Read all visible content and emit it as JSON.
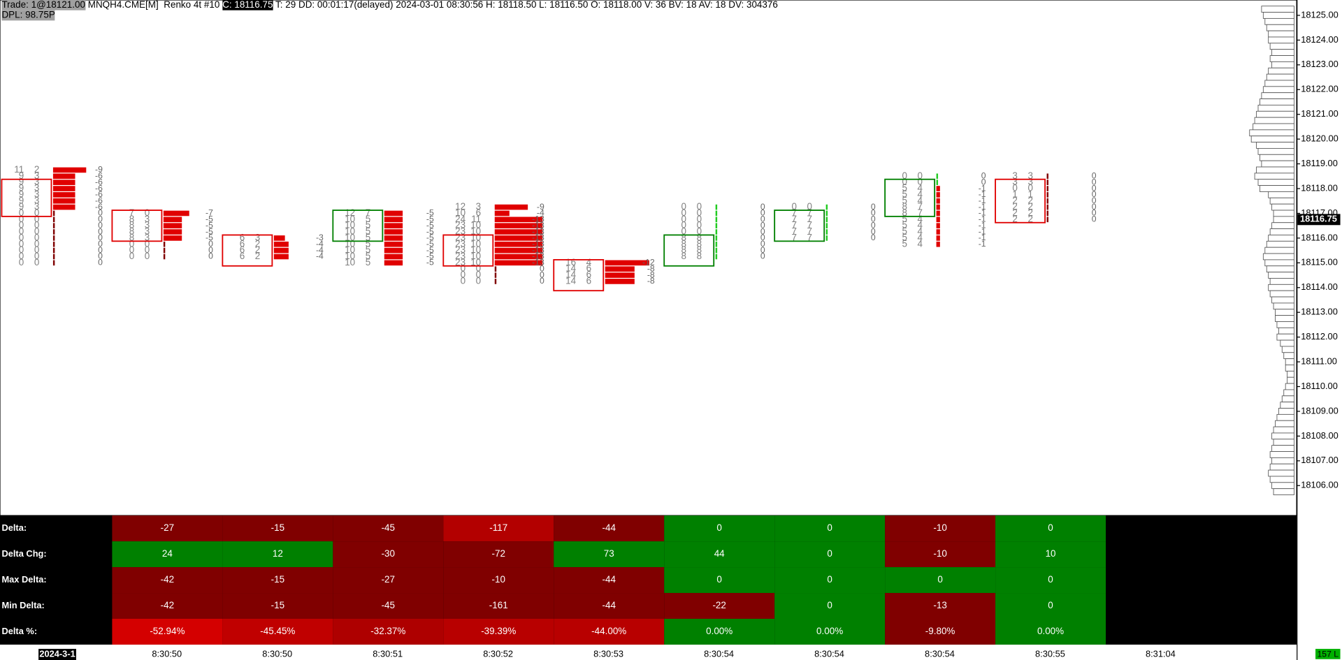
{
  "header": {
    "trade": "Trade: 1@18121.00",
    "symbol": "MNQH4.CME[M]  Renko 4t #10",
    "close": "C: 18116.75",
    "stats": "T: 29 DD: 00:01:17(delayed) 2024-03-01 08:30:56 H: 18118.50 L: 18116.50 O: 18118.00 V: 36 BV: 18 AV: 18 DV: 304376",
    "dpl": "DPL: 98.75P"
  },
  "price_axis": {
    "ylim": [
      18104.79,
      18125.62
    ],
    "ticks": [
      {
        "value": 18125,
        "label": "18125.00"
      },
      {
        "value": 18124,
        "label": "18124.00"
      },
      {
        "value": 18123,
        "label": "18123.00"
      },
      {
        "value": 18122,
        "label": "18122.00"
      },
      {
        "value": 18121,
        "label": "18121.00"
      },
      {
        "value": 18120,
        "label": "18120.00"
      },
      {
        "value": 18119,
        "label": "18119.00"
      },
      {
        "value": 18118,
        "label": "18118.00"
      },
      {
        "value": 18117,
        "label": "18117.00"
      },
      {
        "value": 18116,
        "label": "18116.00"
      },
      {
        "value": 18115,
        "label": "18115.00"
      },
      {
        "value": 18114,
        "label": "18114.00"
      },
      {
        "value": 18113,
        "label": "18113.00"
      },
      {
        "value": 18112,
        "label": "18112.00"
      },
      {
        "value": 18111,
        "label": "18111.00"
      },
      {
        "value": 18110,
        "label": "18110.00"
      },
      {
        "value": 18109,
        "label": "18109.00"
      },
      {
        "value": 18108,
        "label": "18108.00"
      },
      {
        "value": 18107,
        "label": "18107.00"
      },
      {
        "value": 18106,
        "label": "18106.00"
      }
    ],
    "current": {
      "value": 18116.75,
      "label": "18116.75"
    }
  },
  "volume_profile": {
    "top_price": 18125.25,
    "step": 0.25,
    "volumes": [
      38,
      36,
      34,
      32,
      30,
      30,
      28,
      26,
      28,
      26,
      30,
      32,
      34,
      36,
      38,
      40,
      42,
      44,
      46,
      48,
      52,
      50,
      44,
      42,
      40,
      38,
      44,
      46,
      42,
      40,
      30,
      28,
      26,
      24,
      24,
      26,
      28,
      30,
      32,
      34,
      36,
      34,
      32,
      30,
      28,
      30,
      28,
      26,
      24,
      22,
      22,
      20,
      18,
      20,
      16,
      14,
      12,
      10,
      10,
      8,
      8,
      10,
      12,
      14,
      16,
      18,
      20,
      22,
      24,
      26,
      24,
      26,
      28,
      26,
      28,
      30,
      28,
      26,
      24
    ]
  },
  "footprints": [
    {
      "top_price": 18118.75,
      "box": [
        18118.25,
        18117.0
      ],
      "color": "#e00000",
      "rows": [
        [
          11,
          2,
          -9
        ],
        [
          9,
          3,
          -6
        ],
        [
          9,
          3,
          -6
        ],
        [
          9,
          3,
          -6
        ],
        [
          9,
          3,
          -6
        ],
        [
          9,
          3,
          -6
        ],
        [
          9,
          3,
          -6
        ],
        [
          0,
          0,
          0
        ],
        [
          0,
          0,
          0
        ],
        [
          0,
          0,
          0
        ],
        [
          0,
          0,
          0
        ],
        [
          0,
          0,
          0
        ],
        [
          0,
          0,
          0
        ],
        [
          0,
          0,
          0
        ],
        [
          0,
          0,
          0
        ],
        [
          0,
          0,
          0
        ]
      ]
    },
    {
      "top_price": 18117.0,
      "box": [
        18117.0,
        18116.0
      ],
      "color": "#e00000",
      "rows": [
        [
          7,
          0,
          -7
        ],
        [
          8,
          3,
          -5
        ],
        [
          8,
          3,
          -5
        ],
        [
          8,
          3,
          -5
        ],
        [
          8,
          3,
          -5
        ],
        [
          0,
          0,
          0
        ],
        [
          0,
          0,
          0
        ],
        [
          0,
          0,
          0
        ]
      ]
    },
    {
      "top_price": 18116.0,
      "box": [
        18116.0,
        18115.0
      ],
      "color": "#e00000",
      "rows": [
        [
          6,
          3,
          -3
        ],
        [
          6,
          2,
          -4
        ],
        [
          6,
          2,
          -4
        ],
        [
          6,
          2,
          -4
        ]
      ]
    },
    {
      "top_price": 18117.0,
      "box": [
        18117.0,
        18116.0
      ],
      "color": "#008000",
      "rows": [
        [
          12,
          7,
          -5
        ],
        [
          10,
          5,
          -5
        ],
        [
          10,
          5,
          -5
        ],
        [
          10,
          5,
          -5
        ],
        [
          10,
          5,
          -5
        ],
        [
          10,
          5,
          -5
        ],
        [
          10,
          5,
          -5
        ],
        [
          10,
          5,
          -5
        ],
        [
          10,
          5,
          -5
        ]
      ]
    },
    {
      "top_price": 18117.25,
      "box": [
        18116.0,
        18115.0
      ],
      "color": "#e00000",
      "rows": [
        [
          12,
          3,
          -9
        ],
        [
          10,
          6,
          -4
        ],
        [
          24,
          11,
          -13
        ],
        [
          23,
          10,
          -13
        ],
        [
          23,
          10,
          -13
        ],
        [
          23,
          10,
          -13
        ],
        [
          23,
          10,
          -13
        ],
        [
          23,
          10,
          -13
        ],
        [
          23,
          10,
          -13
        ],
        [
          23,
          10,
          -13
        ],
        [
          0,
          0,
          0
        ],
        [
          0,
          0,
          0
        ],
        [
          0,
          0,
          0
        ]
      ]
    },
    {
      "top_price": 18115.0,
      "box": [
        18115.0,
        18114.0
      ],
      "color": "#e00000",
      "rows": [
        [
          16,
          4,
          -12
        ],
        [
          14,
          6,
          -8
        ],
        [
          14,
          6,
          -8
        ],
        [
          14,
          6,
          -8
        ]
      ]
    },
    {
      "top_price": 18117.25,
      "box": [
        18116.0,
        18115.0
      ],
      "color": "#008000",
      "rows": [
        [
          0,
          0,
          0
        ],
        [
          0,
          0,
          0
        ],
        [
          0,
          0,
          0
        ],
        [
          0,
          0,
          0
        ],
        [
          0,
          0,
          0
        ],
        [
          8,
          8,
          0
        ],
        [
          8,
          8,
          0
        ],
        [
          8,
          8,
          0
        ],
        [
          8,
          8,
          0
        ]
      ]
    },
    {
      "top_price": 18117.25,
      "box": [
        18117.0,
        18116.0
      ],
      "color": "#008000",
      "rows": [
        [
          0,
          0,
          0
        ],
        [
          7,
          7,
          0
        ],
        [
          7,
          7,
          0
        ],
        [
          7,
          7,
          0
        ],
        [
          7,
          7,
          0
        ],
        [
          7,
          7,
          0
        ]
      ]
    },
    {
      "top_price": 18118.5,
      "box": [
        18118.25,
        18117.0
      ],
      "color": "#008000",
      "rows": [
        [
          0,
          0,
          0
        ],
        [
          0,
          0,
          0
        ],
        [
          5,
          4,
          -1
        ],
        [
          5,
          4,
          -1
        ],
        [
          5,
          4,
          -1
        ],
        [
          8,
          7,
          -1
        ],
        [
          8,
          7,
          -1
        ],
        [
          5,
          4,
          -1
        ],
        [
          5,
          4,
          -1
        ],
        [
          5,
          4,
          -1
        ],
        [
          5,
          4,
          -1
        ],
        [
          5,
          4,
          -1
        ]
      ]
    },
    {
      "top_price": 18118.5,
      "box": [
        18118.25,
        18116.75
      ],
      "color": "#e00000",
      "rows": [
        [
          3,
          3,
          0
        ],
        [
          3,
          3,
          0
        ],
        [
          0,
          0,
          0
        ],
        [
          1,
          1,
          0
        ],
        [
          2,
          2,
          0
        ],
        [
          2,
          2,
          0
        ],
        [
          2,
          2,
          0
        ],
        [
          2,
          2,
          0
        ]
      ]
    }
  ],
  "table": {
    "rows": [
      {
        "label": "Delta:",
        "cells": [
          {
            "text": "-27",
            "color": "#800000"
          },
          {
            "text": "-15",
            "color": "#800000"
          },
          {
            "text": "-45",
            "color": "#800000"
          },
          {
            "text": "-117",
            "color": "#b30000"
          },
          {
            "text": "-44",
            "color": "#800000"
          },
          {
            "text": "0",
            "color": "#008000"
          },
          {
            "text": "0",
            "color": "#008000"
          },
          {
            "text": "-10",
            "color": "#800000"
          },
          {
            "text": "0",
            "color": "#008000"
          }
        ]
      },
      {
        "label": "Delta Chg:",
        "cells": [
          {
            "text": "24",
            "color": "#008000"
          },
          {
            "text": "12",
            "color": "#008000"
          },
          {
            "text": "-30",
            "color": "#800000"
          },
          {
            "text": "-72",
            "color": "#800000"
          },
          {
            "text": "73",
            "color": "#008000"
          },
          {
            "text": "44",
            "color": "#008000"
          },
          {
            "text": "0",
            "color": "#008000"
          },
          {
            "text": "-10",
            "color": "#800000"
          },
          {
            "text": "10",
            "color": "#008000"
          }
        ]
      },
      {
        "label": "Max Delta:",
        "cells": [
          {
            "text": "-42",
            "color": "#800000"
          },
          {
            "text": "-15",
            "color": "#800000"
          },
          {
            "text": "-27",
            "color": "#800000"
          },
          {
            "text": "-10",
            "color": "#800000"
          },
          {
            "text": "-44",
            "color": "#800000"
          },
          {
            "text": "0",
            "color": "#008000"
          },
          {
            "text": "0",
            "color": "#008000"
          },
          {
            "text": "0",
            "color": "#008000"
          },
          {
            "text": "0",
            "color": "#008000"
          }
        ]
      },
      {
        "label": "Min Delta:",
        "cells": [
          {
            "text": "-42",
            "color": "#800000"
          },
          {
            "text": "-15",
            "color": "#800000"
          },
          {
            "text": "-45",
            "color": "#800000"
          },
          {
            "text": "-161",
            "color": "#800000"
          },
          {
            "text": "-44",
            "color": "#800000"
          },
          {
            "text": "-22",
            "color": "#800000"
          },
          {
            "text": "0",
            "color": "#008000"
          },
          {
            "text": "-13",
            "color": "#800000"
          },
          {
            "text": "0",
            "color": "#008000"
          }
        ]
      },
      {
        "label": "Delta %:",
        "cells": [
          {
            "text": "-52.94%",
            "color": "#d40000"
          },
          {
            "text": "-45.45%",
            "color": "#c00000"
          },
          {
            "text": "-32.37%",
            "color": "#ae0000"
          },
          {
            "text": "-39.39%",
            "color": "#b80000"
          },
          {
            "text": "-44.00%",
            "color": "#b80000"
          },
          {
            "text": "0.00%",
            "color": "#008000"
          },
          {
            "text": "0.00%",
            "color": "#008000"
          },
          {
            "text": "-9.80%",
            "color": "#800000"
          },
          {
            "text": "0.00%",
            "color": "#008000"
          }
        ]
      }
    ]
  },
  "time_axis": {
    "date": "2024-3-1",
    "labels": [
      "8:30:50",
      "8:30:50",
      "8:30:51",
      "8:30:52",
      "8:30:53",
      "8:30:54",
      "8:30:54",
      "8:30:54",
      "8:30:55",
      "8:31:04"
    ]
  },
  "status": "157 L"
}
